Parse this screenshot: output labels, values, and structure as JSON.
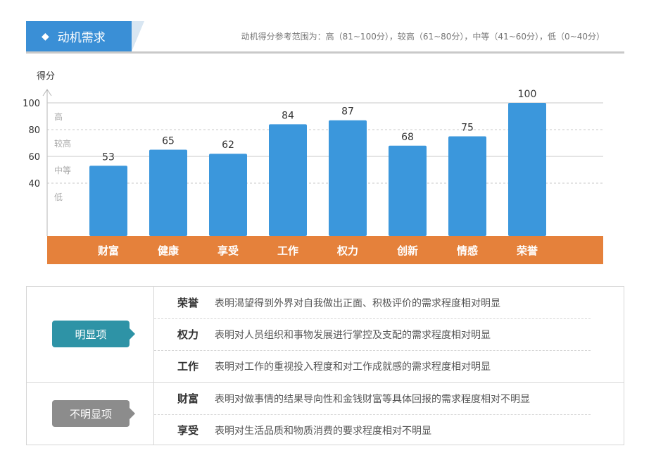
{
  "header": {
    "title": "动机需求",
    "reference": "动机得分参考范围为：高（81~100分），较高（61~80分），中等（41~60分），低（0~40分）"
  },
  "chart_data": {
    "type": "bar",
    "ylabel": "得分",
    "yticks": [
      40,
      60,
      80,
      100
    ],
    "ylim": [
      0,
      100
    ],
    "levels": [
      "高",
      "较高",
      "中等",
      "低"
    ],
    "categories": [
      "财富",
      "健康",
      "享受",
      "工作",
      "权力",
      "创新",
      "情感",
      "荣誉"
    ],
    "values": [
      53,
      65,
      62,
      84,
      87,
      68,
      75,
      100
    ],
    "colors": {
      "bar": "#3b97dc",
      "category_band": "#e5813b"
    }
  },
  "table": {
    "groups": [
      {
        "label": "明显项",
        "rows": [
          {
            "name": "荣誉",
            "desc": "表明渴望得到外界对自我做出正面、积极评价的需求程度相对明显"
          },
          {
            "name": "权力",
            "desc": "表明对人员组织和事物发展进行掌控及支配的需求程度相对明显"
          },
          {
            "name": "工作",
            "desc": "表明对工作的重视投入程度和对工作成就感的需求程度相对明显"
          }
        ]
      },
      {
        "label": "不明显项",
        "rows": [
          {
            "name": "财富",
            "desc": "表明对做事情的结果导向性和金钱财富等具体回报的需求程度相对不明显"
          },
          {
            "name": "享受",
            "desc": "表明对生活品质和物质消费的要求程度相对不明显"
          }
        ]
      }
    ]
  }
}
